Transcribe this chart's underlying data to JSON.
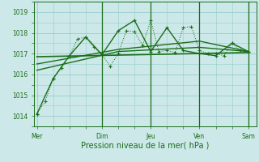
{
  "xlabel": "Pression niveau de la mer( hPa )",
  "bg_color": "#cce8e8",
  "grid_color": "#99cccc",
  "line_color": "#1a6e1a",
  "ylim": [
    1013.5,
    1019.5
  ],
  "yticks": [
    1014,
    1015,
    1016,
    1017,
    1018,
    1019
  ],
  "x_tick_labels": [
    "Mer",
    "Dim",
    "Jeu",
    "Ven",
    "Sam"
  ],
  "x_tick_positions": [
    0,
    4,
    7,
    10,
    13
  ],
  "vline_positions": [
    4,
    7,
    10,
    13
  ],
  "xlim": [
    -0.2,
    13.5
  ],
  "series": [
    {
      "x": [
        0,
        0.5,
        1,
        1.5,
        2,
        2.5,
        3,
        3.5,
        4,
        4.5,
        5,
        5.5,
        6,
        6.5,
        7,
        7.5,
        8,
        8.5,
        9,
        9.5,
        10,
        10.5,
        11,
        11.5,
        12,
        12.5,
        13
      ],
      "y": [
        1014.1,
        1014.7,
        1015.8,
        1016.3,
        1016.9,
        1017.7,
        1017.8,
        1017.3,
        1016.95,
        1016.4,
        1017.0,
        1018.1,
        1018.05,
        1017.4,
        1018.6,
        1017.1,
        1017.15,
        1017.05,
        1018.25,
        1018.3,
        1017.15,
        1017.0,
        1017.0,
        1016.9,
        1017.5,
        1017.15,
        1017.1
      ],
      "style": "dotted",
      "marker": "+"
    },
    {
      "x": [
        0,
        1,
        2,
        3,
        4,
        5,
        6,
        7,
        8,
        9,
        10,
        11,
        12,
        13
      ],
      "y": [
        1014.1,
        1015.8,
        1016.9,
        1017.8,
        1016.95,
        1018.1,
        1018.6,
        1017.1,
        1018.25,
        1017.15,
        1017.0,
        1016.9,
        1017.5,
        1017.1
      ],
      "style": "solid",
      "marker": "+"
    },
    {
      "x": [
        0,
        13
      ],
      "y": [
        1016.85,
        1017.05
      ],
      "style": "solid",
      "marker": null
    },
    {
      "x": [
        0,
        5,
        10,
        13
      ],
      "y": [
        1016.2,
        1017.1,
        1017.3,
        1017.1
      ],
      "style": "solid",
      "marker": null
    },
    {
      "x": [
        0,
        5,
        10,
        13
      ],
      "y": [
        1016.5,
        1017.2,
        1017.6,
        1017.1
      ],
      "style": "solid",
      "marker": null
    }
  ]
}
